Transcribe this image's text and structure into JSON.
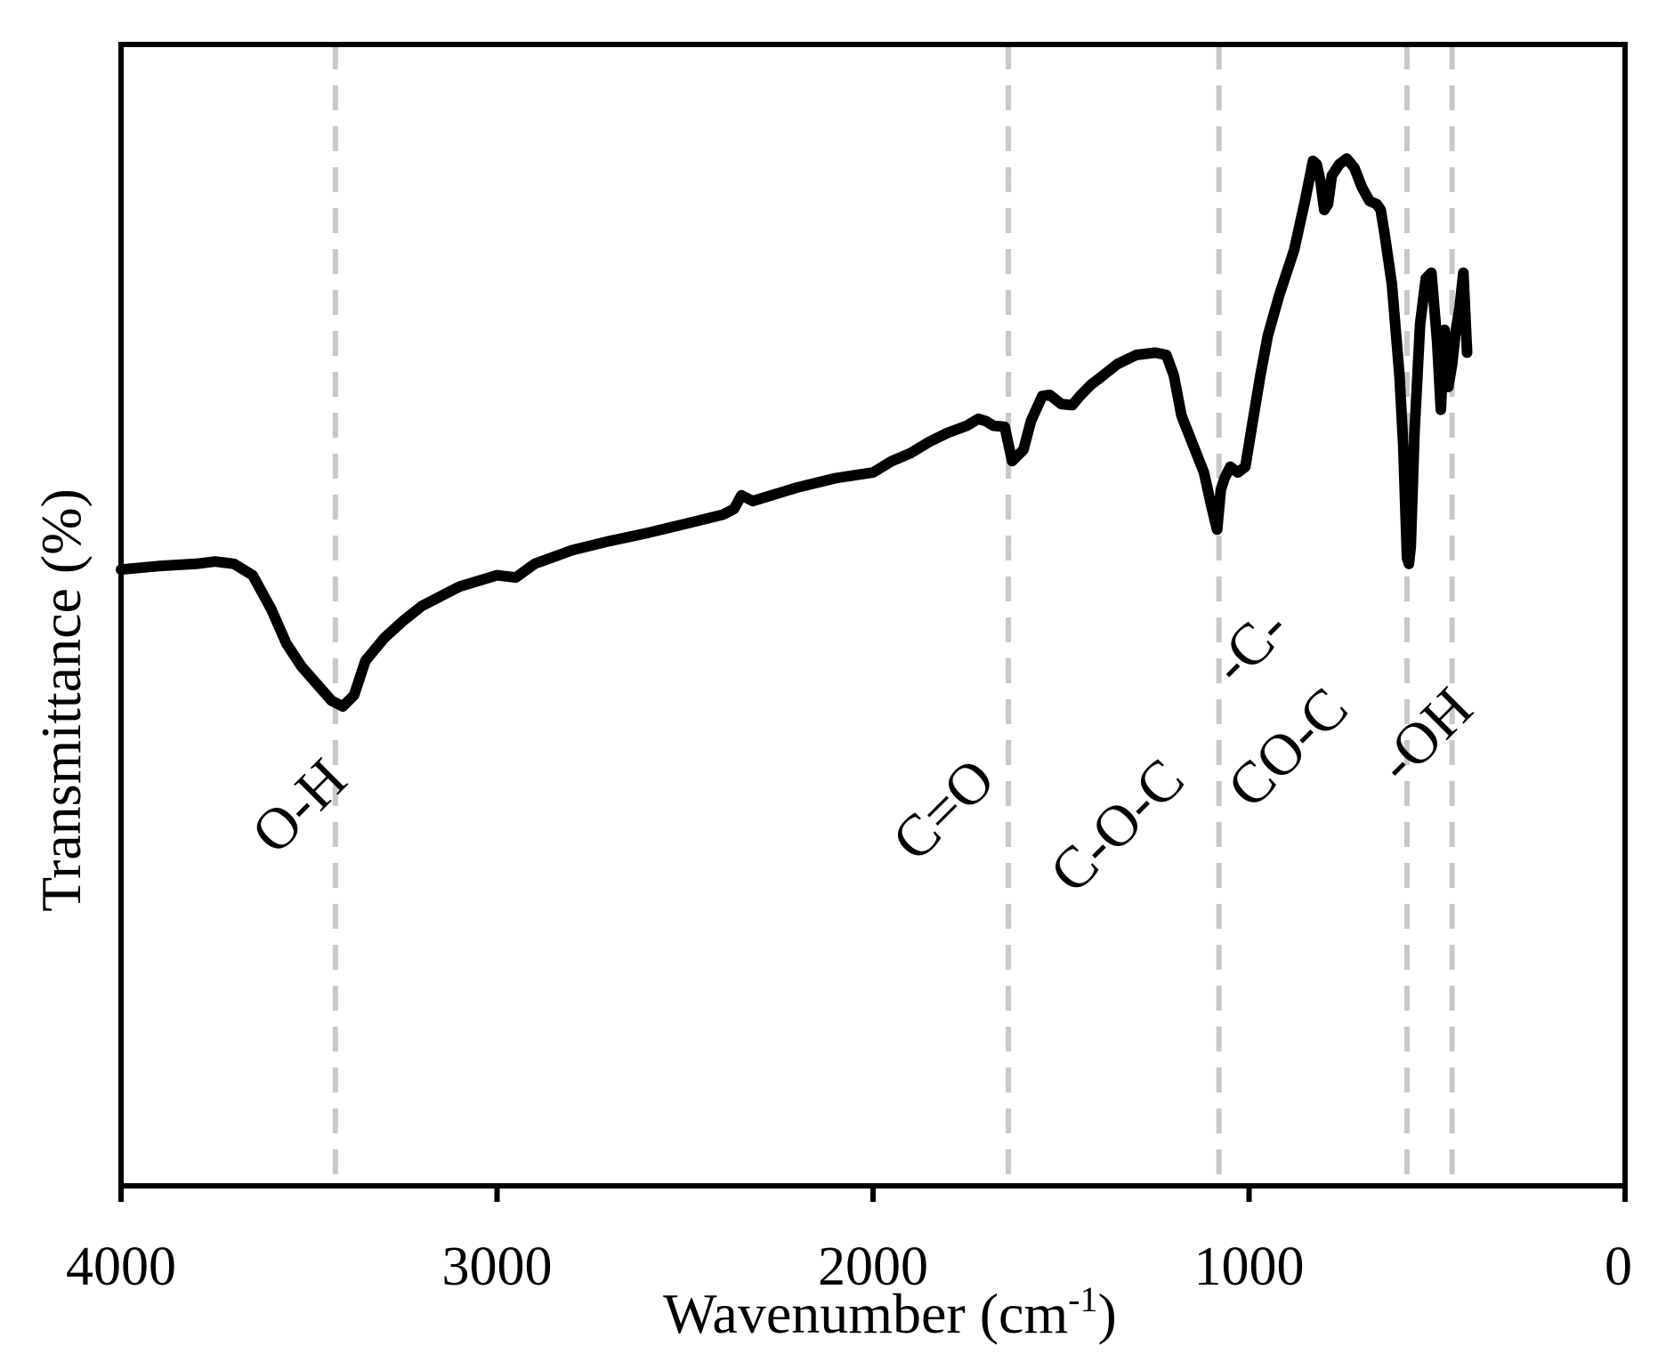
{
  "chart_data": {
    "type": "line",
    "xlabel": "Wavenumber (cm",
    "xlabel_sup": "-1",
    "xlabel_tail": ")",
    "ylabel": "Transmittance (%)",
    "xlim": [
      4000,
      0
    ],
    "ylim": [
      0,
      100
    ],
    "x_ticks": [
      4000,
      3000,
      2000,
      1000,
      0
    ],
    "x_tick_labels": [
      "4000",
      "3000",
      "2000",
      "1000",
      "0"
    ],
    "grid": false,
    "line_color": "#000000",
    "marker_color": "#c8c8c8",
    "series": [
      {
        "x": [
          4000,
          3900,
          3800,
          3750,
          3700,
          3650,
          3600,
          3560,
          3520,
          3480,
          3440,
          3410,
          3380,
          3350,
          3300,
          3250,
          3200,
          3100,
          3000,
          2950,
          2900,
          2800,
          2700,
          2600,
          2500,
          2400,
          2370,
          2350,
          2320,
          2300,
          2200,
          2100,
          2000,
          1950,
          1900,
          1850,
          1800,
          1750,
          1720,
          1700,
          1680,
          1650,
          1630,
          1600,
          1580,
          1550,
          1530,
          1500,
          1470,
          1450,
          1420,
          1400,
          1350,
          1300,
          1250,
          1220,
          1200,
          1180,
          1150,
          1120,
          1100,
          1085,
          1075,
          1065,
          1050,
          1030,
          1010,
          990,
          970,
          950,
          920,
          880,
          850,
          830,
          820,
          810,
          800,
          790,
          780,
          760,
          740,
          720,
          700,
          680,
          660,
          650,
          640,
          620,
          600,
          590,
          580,
          575,
          570,
          560,
          545,
          530,
          515,
          500,
          490,
          480,
          470,
          460,
          450,
          440,
          430,
          420
        ],
        "y": [
          54,
          54.3,
          54.5,
          54.7,
          54.5,
          53.5,
          50.5,
          47.5,
          45.5,
          44,
          42.5,
          42,
          43,
          46,
          48,
          49.5,
          50.8,
          52.5,
          53.5,
          53.3,
          54.5,
          55.7,
          56.5,
          57.2,
          58,
          58.8,
          59.3,
          60.5,
          60,
          60.2,
          61.2,
          62,
          62.5,
          63.5,
          64.2,
          65.2,
          66,
          66.6,
          67.2,
          67,
          66.6,
          66.5,
          63.5,
          64.5,
          67,
          69.2,
          69.3,
          68.5,
          68.4,
          69.2,
          70.2,
          70.7,
          72,
          72.8,
          73,
          72.8,
          71,
          67.5,
          65,
          62.5,
          59.5,
          57.5,
          61,
          62,
          63,
          62.5,
          63,
          67,
          71,
          74.5,
          78,
          82,
          86.5,
          89.8,
          89.5,
          88,
          85.5,
          86,
          88.5,
          89.5,
          90,
          89.2,
          87.5,
          86.3,
          86,
          85.5,
          83.5,
          79,
          71,
          65,
          55,
          54.5,
          56,
          66,
          75.5,
          79.5,
          80,
          74,
          68,
          75,
          70,
          72,
          75,
          77,
          80,
          73
        ]
      }
    ],
    "markers": [
      {
        "x": 3430,
        "label": "O-H"
      },
      {
        "x": 1640,
        "label": "C=O"
      },
      {
        "x": 1080,
        "label": "C-O-C"
      },
      {
        "x": 580,
        "label": "CO-C"
      },
      {
        "x": 460,
        "label": "-OH"
      }
    ],
    "extra_annotations": [
      {
        "x": 820,
        "label": "-C-"
      }
    ]
  }
}
